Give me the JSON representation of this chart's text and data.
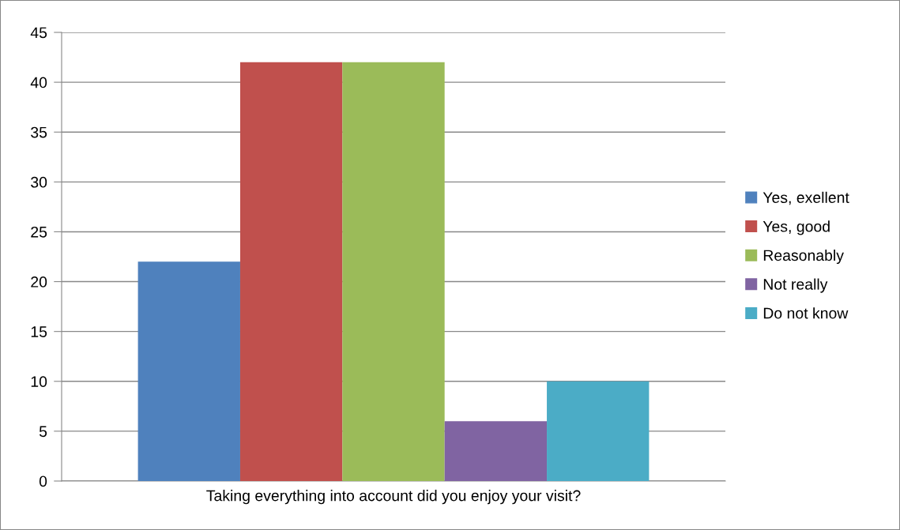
{
  "chart_data": {
    "type": "bar",
    "categories": [
      "Taking everything into account did you enjoy your visit?"
    ],
    "series": [
      {
        "name": "Yes, exellent",
        "color": "#4f81bd",
        "values": [
          22
        ]
      },
      {
        "name": "Yes, good",
        "color": "#c0504d",
        "values": [
          42
        ]
      },
      {
        "name": "Reasonably",
        "color": "#9bbb59",
        "values": [
          42
        ]
      },
      {
        "name": "Not really",
        "color": "#8064a2",
        "values": [
          6
        ]
      },
      {
        "name": "Do not know",
        "color": "#4bacc6",
        "values": [
          10
        ]
      }
    ],
    "ylim": [
      0,
      45
    ],
    "yticks": [
      0,
      5,
      10,
      15,
      20,
      25,
      30,
      35,
      40,
      45
    ],
    "grid": "y",
    "legend": "right"
  }
}
